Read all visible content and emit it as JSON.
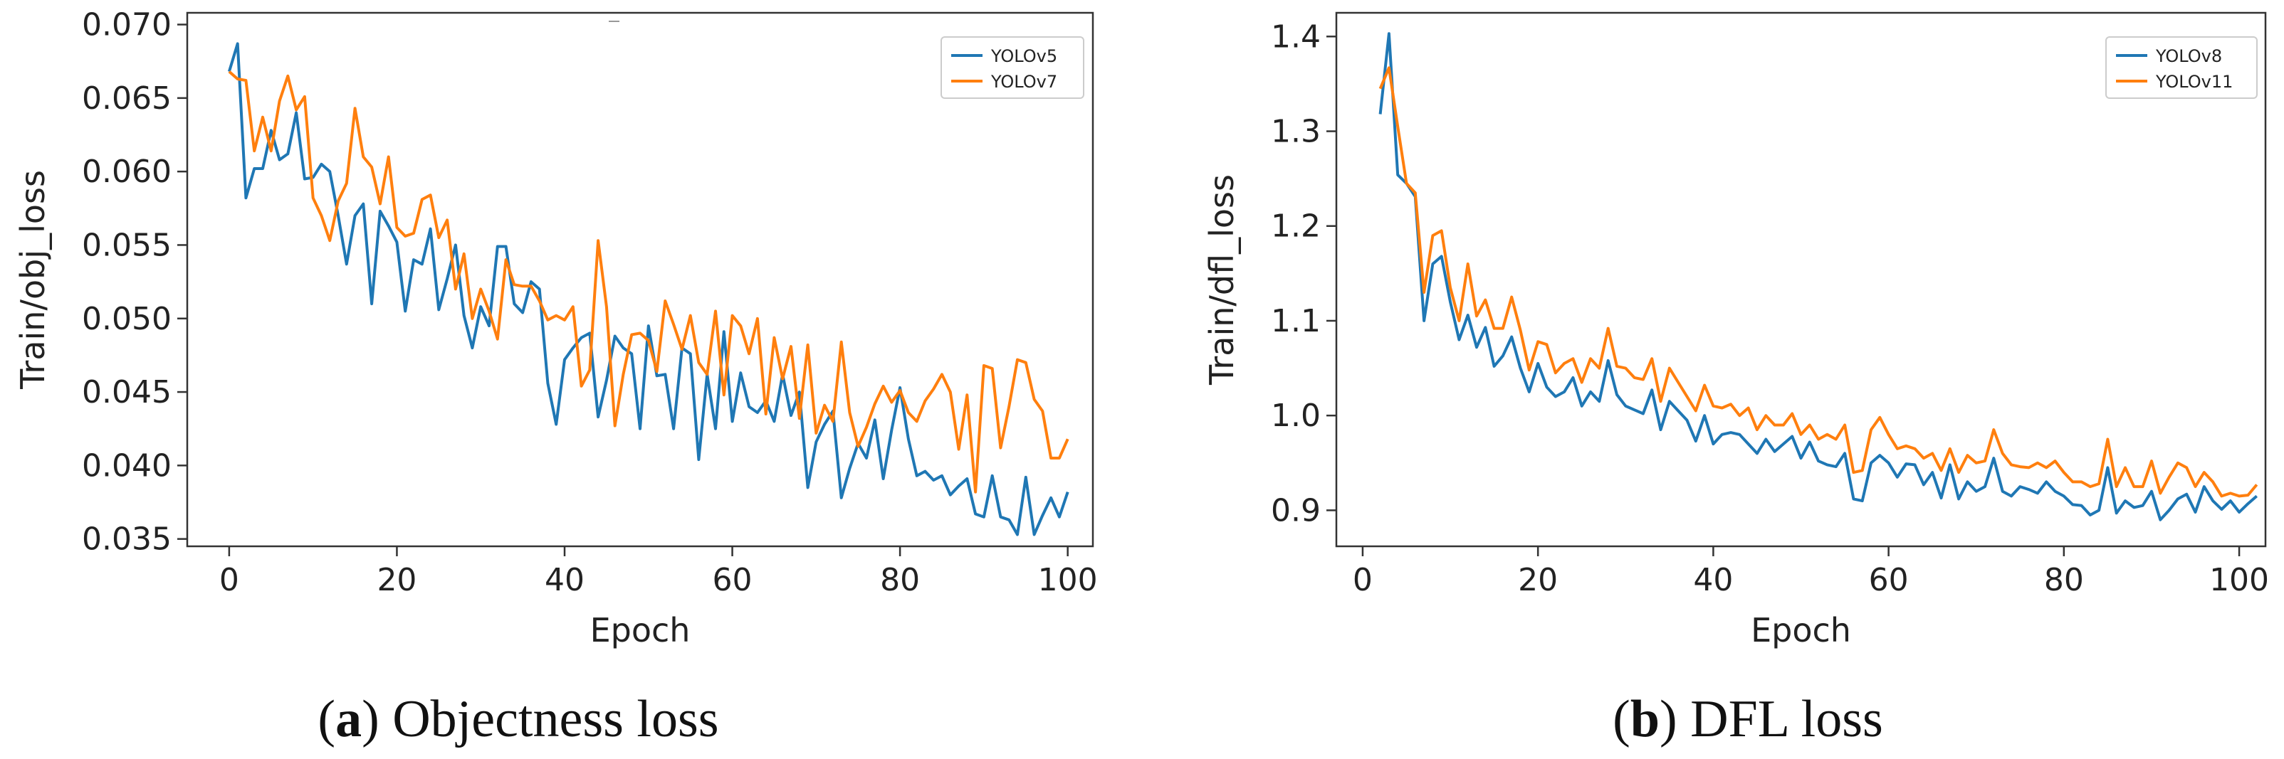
{
  "figure_panels": [
    {
      "caption_letter": "a",
      "caption_text": "Objectness loss"
    },
    {
      "caption_letter": "b",
      "caption_text": "DFL loss"
    }
  ],
  "chart_data": [
    {
      "type": "line",
      "xlabel": "Epoch",
      "ylabel": "Train/obj_loss",
      "xlim": [
        -5,
        103
      ],
      "ylim": [
        0.0345,
        0.0708
      ],
      "xticks": [
        0,
        20,
        40,
        60,
        80,
        100
      ],
      "xtick_labels": [
        "0",
        "20",
        "40",
        "60",
        "80",
        "100"
      ],
      "yticks": [
        0.035,
        0.04,
        0.045,
        0.05,
        0.055,
        0.06,
        0.065,
        0.07
      ],
      "ytick_labels": [
        "0.035",
        "0.040",
        "0.045",
        "0.050",
        "0.055",
        "0.060",
        "0.065",
        "0.070"
      ],
      "grid": false,
      "legend_position": "top-right",
      "series": [
        {
          "name": "YOLOv5",
          "color": "#1f77b4",
          "x_start": 0,
          "values": [
            0.0668,
            0.0687,
            0.0582,
            0.0602,
            0.0602,
            0.0628,
            0.0608,
            0.0612,
            0.064,
            0.0595,
            0.0596,
            0.0605,
            0.06,
            0.057,
            0.0537,
            0.057,
            0.0578,
            0.051,
            0.0573,
            0.0563,
            0.0552,
            0.0505,
            0.054,
            0.0537,
            0.0561,
            0.0506,
            0.0527,
            0.055,
            0.0502,
            0.048,
            0.0508,
            0.0495,
            0.0549,
            0.0549,
            0.051,
            0.0504,
            0.0525,
            0.052,
            0.0456,
            0.0428,
            0.0472,
            0.048,
            0.0487,
            0.049,
            0.0433,
            0.0458,
            0.0488,
            0.048,
            0.0476,
            0.0425,
            0.0495,
            0.0461,
            0.0462,
            0.0425,
            0.048,
            0.0476,
            0.0404,
            0.0462,
            0.0425,
            0.0491,
            0.043,
            0.0463,
            0.044,
            0.0436,
            0.0444,
            0.043,
            0.0462,
            0.0434,
            0.045,
            0.0385,
            0.0416,
            0.0428,
            0.0437,
            0.0378,
            0.0398,
            0.0415,
            0.0405,
            0.0431,
            0.0391,
            0.0424,
            0.0453,
            0.0418,
            0.0393,
            0.0396,
            0.039,
            0.0393,
            0.038,
            0.0386,
            0.0391,
            0.0367,
            0.0365,
            0.0393,
            0.0365,
            0.0363,
            0.0353,
            0.0392,
            0.0353,
            0.0366,
            0.0378,
            0.0365,
            0.0382
          ]
        },
        {
          "name": "YOLOv7",
          "color": "#ff7f0e",
          "x_start": 0,
          "values": [
            0.0668,
            0.0663,
            0.0662,
            0.0614,
            0.0637,
            0.0614,
            0.0648,
            0.0665,
            0.0642,
            0.0651,
            0.0582,
            0.057,
            0.0553,
            0.058,
            0.0592,
            0.0643,
            0.061,
            0.0603,
            0.0578,
            0.061,
            0.0562,
            0.0556,
            0.0558,
            0.0581,
            0.0584,
            0.0555,
            0.0567,
            0.052,
            0.0544,
            0.05,
            0.052,
            0.0505,
            0.0486,
            0.054,
            0.0523,
            0.0522,
            0.0522,
            0.0512,
            0.0499,
            0.0502,
            0.0499,
            0.0508,
            0.0454,
            0.0465,
            0.0553,
            0.0508,
            0.0427,
            0.0462,
            0.0489,
            0.049,
            0.0485,
            0.0464,
            0.0512,
            0.0496,
            0.0479,
            0.0502,
            0.047,
            0.0462,
            0.0505,
            0.0448,
            0.0502,
            0.0495,
            0.0476,
            0.05,
            0.0435,
            0.0487,
            0.0459,
            0.0481,
            0.0432,
            0.0482,
            0.0422,
            0.0441,
            0.043,
            0.0484,
            0.0436,
            0.0413,
            0.0426,
            0.0442,
            0.0454,
            0.0443,
            0.0451,
            0.0436,
            0.043,
            0.0444,
            0.0452,
            0.0462,
            0.045,
            0.0411,
            0.0448,
            0.0382,
            0.0468,
            0.0466,
            0.0412,
            0.044,
            0.0472,
            0.047,
            0.0445,
            0.0437,
            0.0405,
            0.0405,
            0.0418
          ]
        }
      ]
    },
    {
      "type": "line",
      "xlabel": "Epoch",
      "ylabel": "Train/dfl_loss",
      "xlim": [
        -3,
        103
      ],
      "ylim": [
        0.862,
        1.425
      ],
      "xticks": [
        0,
        20,
        40,
        60,
        80,
        100
      ],
      "xtick_labels": [
        "0",
        "20",
        "40",
        "60",
        "80",
        "100"
      ],
      "yticks": [
        0.9,
        1.0,
        1.1,
        1.2,
        1.3,
        1.4
      ],
      "ytick_labels": [
        "0.9",
        "1.0",
        "1.1",
        "1.2",
        "1.3",
        "1.4"
      ],
      "grid": false,
      "legend_position": "top-right",
      "series": [
        {
          "name": "YOLOv8",
          "color": "#1f77b4",
          "x_start": 2,
          "values": [
            1.318,
            1.403,
            1.254,
            1.245,
            1.231,
            1.1,
            1.16,
            1.168,
            1.12,
            1.08,
            1.106,
            1.072,
            1.093,
            1.052,
            1.063,
            1.083,
            1.05,
            1.025,
            1.055,
            1.03,
            1.02,
            1.025,
            1.04,
            1.01,
            1.025,
            1.015,
            1.058,
            1.022,
            1.01,
            1.006,
            1.002,
            1.027,
            0.985,
            1.015,
            1.005,
            0.995,
            0.973,
            1.0,
            0.97,
            0.98,
            0.982,
            0.98,
            0.97,
            0.96,
            0.975,
            0.962,
            0.97,
            0.978,
            0.955,
            0.972,
            0.952,
            0.948,
            0.946,
            0.96,
            0.912,
            0.91,
            0.95,
            0.958,
            0.95,
            0.935,
            0.949,
            0.948,
            0.927,
            0.94,
            0.913,
            0.948,
            0.912,
            0.93,
            0.92,
            0.925,
            0.955,
            0.92,
            0.915,
            0.925,
            0.922,
            0.918,
            0.93,
            0.92,
            0.915,
            0.906,
            0.905,
            0.895,
            0.9,
            0.945,
            0.897,
            0.91,
            0.903,
            0.905,
            0.92,
            0.89,
            0.9,
            0.912,
            0.917,
            0.898,
            0.925,
            0.91,
            0.901,
            0.91,
            0.898,
            0.907,
            0.915
          ]
        },
        {
          "name": "YOLOv11",
          "color": "#ff7f0e",
          "x_start": 2,
          "values": [
            1.345,
            1.367,
            1.305,
            1.245,
            1.235,
            1.13,
            1.19,
            1.195,
            1.135,
            1.1,
            1.16,
            1.105,
            1.122,
            1.092,
            1.092,
            1.125,
            1.09,
            1.048,
            1.078,
            1.075,
            1.045,
            1.055,
            1.06,
            1.035,
            1.06,
            1.05,
            1.092,
            1.052,
            1.05,
            1.04,
            1.038,
            1.06,
            1.015,
            1.05,
            1.035,
            1.02,
            1.005,
            1.032,
            1.01,
            1.008,
            1.012,
            1.0,
            1.008,
            0.985,
            1.0,
            0.99,
            0.99,
            1.002,
            0.98,
            0.99,
            0.975,
            0.98,
            0.975,
            0.99,
            0.94,
            0.942,
            0.985,
            0.998,
            0.98,
            0.965,
            0.968,
            0.965,
            0.955,
            0.96,
            0.942,
            0.965,
            0.94,
            0.958,
            0.95,
            0.952,
            0.985,
            0.96,
            0.948,
            0.946,
            0.945,
            0.95,
            0.945,
            0.952,
            0.94,
            0.93,
            0.93,
            0.925,
            0.928,
            0.975,
            0.925,
            0.945,
            0.925,
            0.925,
            0.952,
            0.918,
            0.935,
            0.95,
            0.945,
            0.925,
            0.94,
            0.93,
            0.915,
            0.918,
            0.915,
            0.916,
            0.927
          ]
        }
      ]
    }
  ]
}
